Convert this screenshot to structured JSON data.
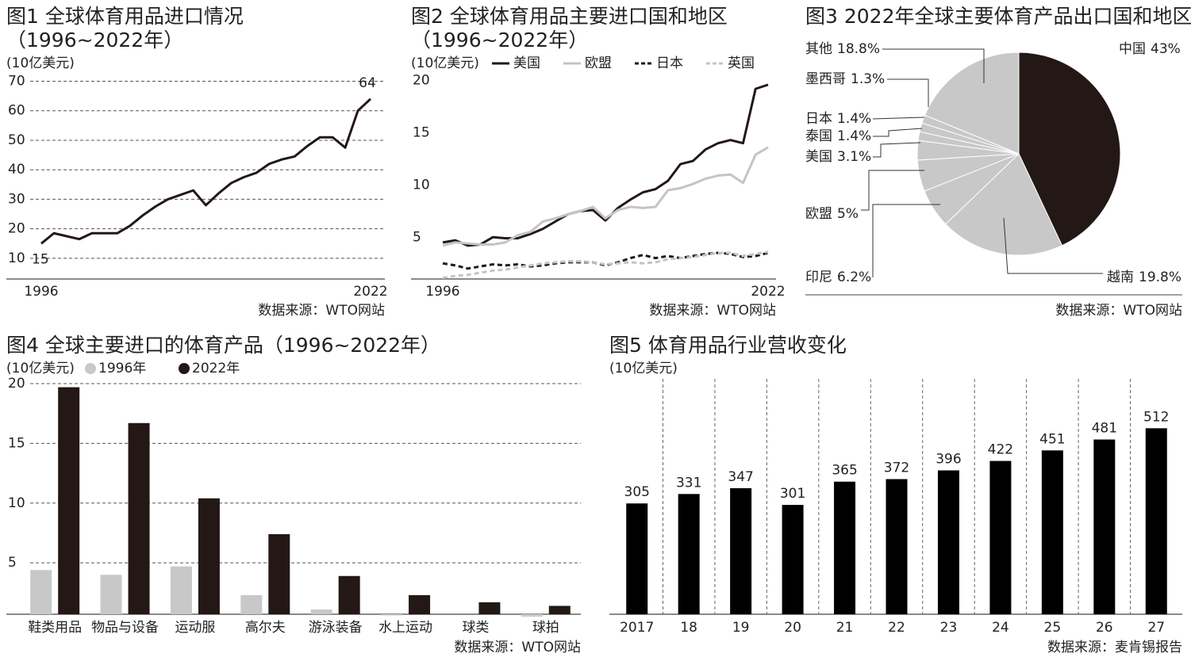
{
  "chart_data": [
    {
      "type": "line",
      "title": [
        "图1 全球体育用品进口情况",
        "（1996~2022年）"
      ],
      "unit": "(10亿美元)",
      "x": [
        1996,
        1997,
        1998,
        1999,
        2000,
        2001,
        2002,
        2003,
        2004,
        2005,
        2006,
        2007,
        2008,
        2009,
        2010,
        2011,
        2012,
        2013,
        2014,
        2015,
        2016,
        2017,
        2018,
        2019,
        2020,
        2021,
        2022
      ],
      "values": [
        15,
        18.5,
        17.5,
        16.5,
        18.5,
        18.5,
        18.5,
        21,
        24.5,
        27.5,
        30,
        31.5,
        33,
        28,
        32,
        35.5,
        37.5,
        39,
        42,
        43.5,
        44.5,
        48,
        51,
        51,
        47.5,
        60,
        64
      ],
      "color": "#231815",
      "xlim": [
        1996,
        2022
      ],
      "xticks": [
        1996,
        2022
      ],
      "ylim": [
        3,
        72
      ],
      "yticks": [
        10,
        20,
        30,
        40,
        50,
        60,
        70
      ],
      "grid": true,
      "source": "数据来源：WTO网站"
    },
    {
      "type": "line",
      "title": [
        "图2 全球体育用品主要进口国和地区",
        "（1996~2022年）"
      ],
      "unit": "(10亿美元)",
      "x": [
        1996,
        1997,
        1998,
        1999,
        2000,
        2001,
        2002,
        2003,
        2004,
        2005,
        2006,
        2007,
        2008,
        2009,
        2010,
        2011,
        2012,
        2013,
        2014,
        2015,
        2016,
        2017,
        2018,
        2019,
        2020,
        2021,
        2022
      ],
      "series": [
        {
          "name": "美国",
          "color": "#231815",
          "dashed": false,
          "values": [
            4.5,
            4.7,
            4.2,
            4.3,
            5.0,
            4.9,
            4.9,
            5.3,
            5.8,
            6.5,
            7.2,
            7.5,
            7.6,
            6.6,
            7.8,
            8.6,
            9.3,
            9.6,
            10.4,
            12,
            12.3,
            13.4,
            14,
            14.3,
            14,
            19.2,
            19.6
          ]
        },
        {
          "name": "欧盟",
          "color": "#c4c4c4",
          "dashed": false,
          "values": [
            4.2,
            4.5,
            4.4,
            4.3,
            4.3,
            4.5,
            5.2,
            5.5,
            6.5,
            6.8,
            7.2,
            7.5,
            7.9,
            6.8,
            7.6,
            7.9,
            7.8,
            7.9,
            9.5,
            9.7,
            10.1,
            10.6,
            10.9,
            11,
            10.2,
            12.9,
            13.6
          ]
        },
        {
          "name": "日本",
          "color": "#231815",
          "dashed": true,
          "values": [
            2.5,
            2.3,
            2,
            2.2,
            2.4,
            2.3,
            2.4,
            2.2,
            2.3,
            2.5,
            2.6,
            2.6,
            2.6,
            2.3,
            2.6,
            3,
            3.3,
            3,
            3.2,
            3,
            3.2,
            3.4,
            3.5,
            3.4,
            3.1,
            3.2,
            3.5
          ]
        },
        {
          "name": "英国",
          "color": "#c4c4c4",
          "dashed": true,
          "values": [
            1.1,
            1.3,
            1.4,
            1.6,
            1.8,
            1.9,
            2.1,
            2.3,
            2.5,
            2.6,
            2.7,
            2.7,
            2.6,
            2.4,
            2.5,
            2.6,
            2.5,
            2.6,
            2.9,
            3,
            3.1,
            3.3,
            3.5,
            3.5,
            3.2,
            3.4,
            3.6
          ]
        }
      ],
      "xlim": [
        1996,
        2022
      ],
      "xticks": [
        1996,
        2022
      ],
      "ylim": [
        1,
        20.5
      ],
      "yticks": [
        5,
        10,
        15,
        20
      ],
      "grid": false,
      "source": "数据来源：WTO网站"
    },
    {
      "type": "pie",
      "title": [
        "图3 2022年全球主要体育产品出口国和地区"
      ],
      "categories": [
        "中国",
        "越南",
        "印尼",
        "欧盟",
        "美国",
        "泰国",
        "日本",
        "墨西哥",
        "其他"
      ],
      "values": [
        43,
        19.8,
        6.2,
        5,
        3.1,
        1.4,
        1.4,
        1.3,
        18.8
      ],
      "value_labels": [
        "43%",
        "19.8%",
        "6.2%",
        "5%",
        "3.1%",
        "1.4%",
        "1.4%",
        "1.3%",
        "18.8%"
      ],
      "colors": [
        "#231815",
        "#c8c8c8",
        "#c8c8c8",
        "#c8c8c8",
        "#c8c8c8",
        "#c8c8c8",
        "#c8c8c8",
        "#c8c8c8",
        "#c8c8c8"
      ],
      "source": "数据来源：WTO网站"
    },
    {
      "type": "bar",
      "title": [
        "图4 全球主要进口的体育产品（1996~2022年）"
      ],
      "unit": "(10亿美元)",
      "categories": [
        "鞋类用品",
        "物品与设备",
        "运动服",
        "高尔夫",
        "游泳装备",
        "水上运动",
        "球类",
        "球拍"
      ],
      "series": [
        {
          "name": "1996年",
          "color": "#c8c8c8",
          "values": [
            4.4,
            4,
            4.7,
            2.3,
            1.1,
            0.6,
            0.7,
            0.5
          ]
        },
        {
          "name": "2022年",
          "color": "#231815",
          "values": [
            19.7,
            16.7,
            10.4,
            7.4,
            3.9,
            2.3,
            1.7,
            1.4
          ]
        }
      ],
      "ylim": [
        0.7,
        20.4
      ],
      "yticks": [
        5,
        10,
        15,
        20
      ],
      "grid": true,
      "source": "数据来源：WTO网站"
    },
    {
      "type": "bar",
      "title": [
        "图5 体育用品行业营收变化"
      ],
      "unit": "(10亿美元)",
      "categories": [
        "2017",
        "18",
        "19",
        "20",
        "21",
        "22",
        "23",
        "24",
        "25",
        "26",
        "27"
      ],
      "values": [
        305,
        331,
        347,
        301,
        365,
        372,
        396,
        422,
        451,
        481,
        512
      ],
      "color": "#000000",
      "ylim": [
        0,
        600
      ],
      "source": "数据来源：麦肯锡报告"
    }
  ]
}
